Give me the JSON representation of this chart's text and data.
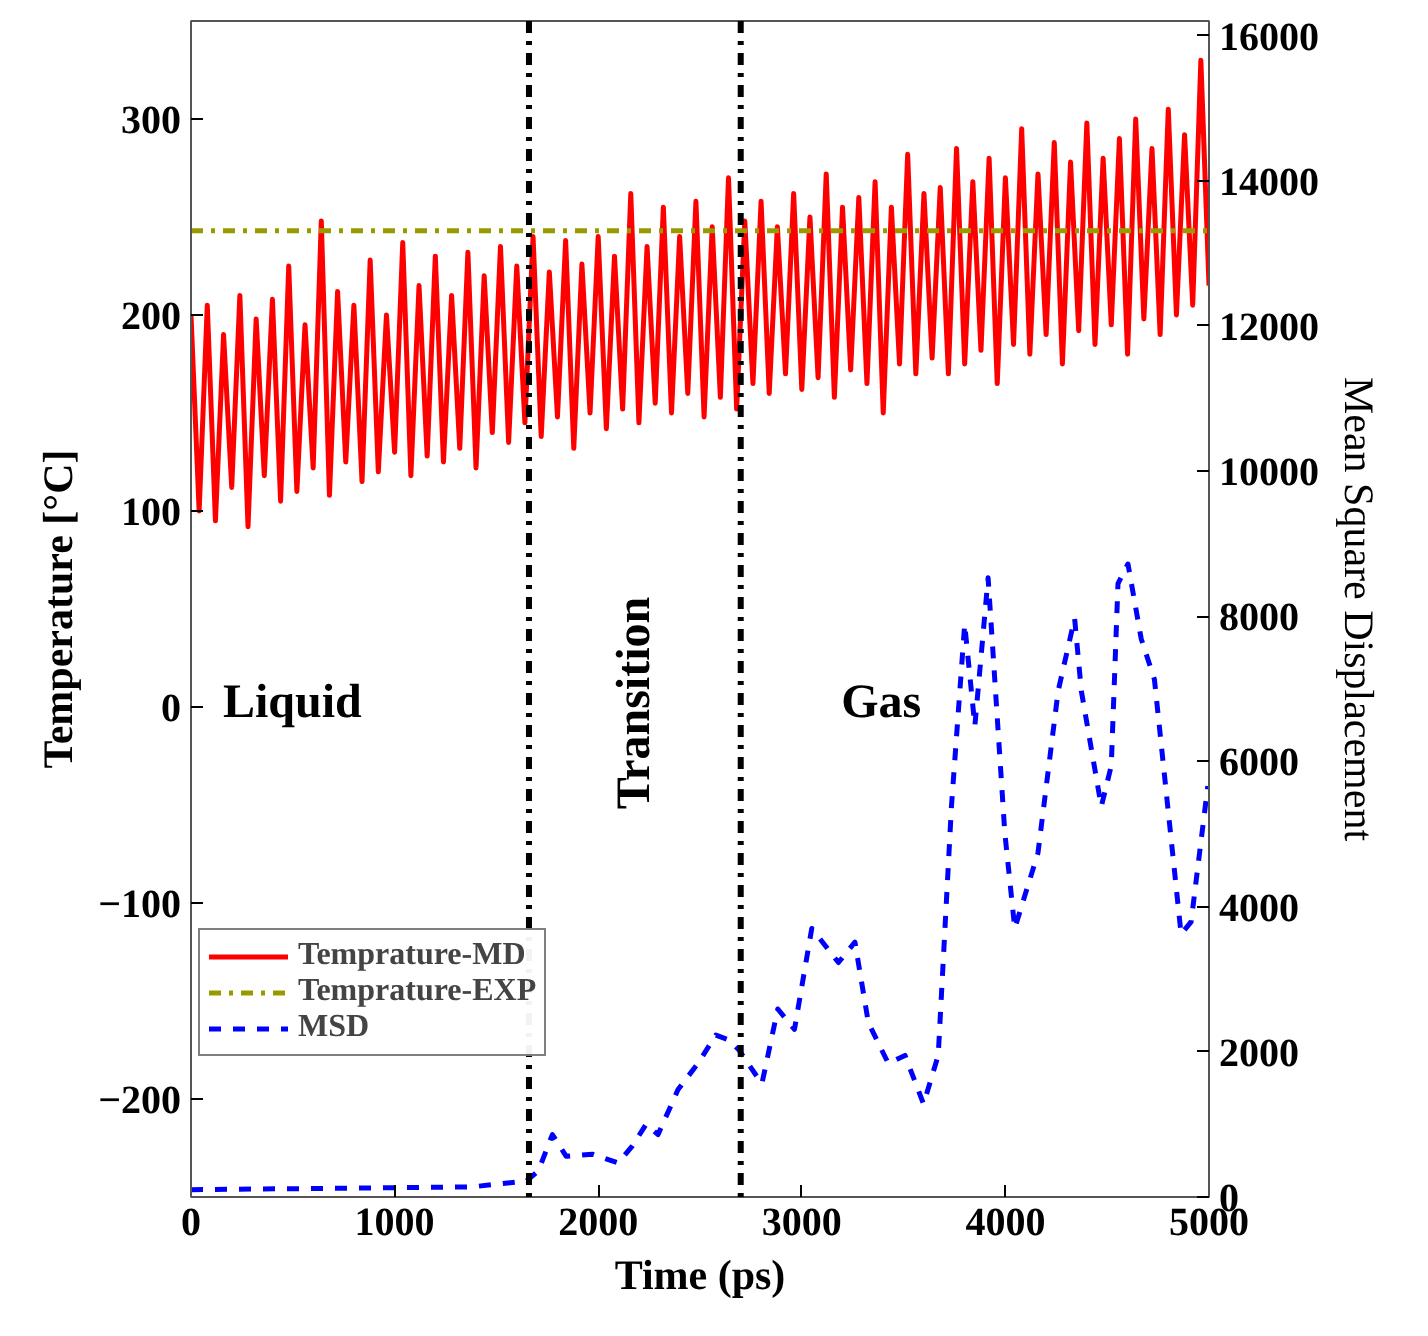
{
  "chart_data": {
    "type": "line",
    "xlabel": "Time (ps)",
    "ylabel": "Temperature [°C]",
    "y2label": "Mean Square Displacement",
    "xlim": [
      0,
      5000
    ],
    "xticks": [
      0,
      1000,
      2000,
      3000,
      4000,
      5000
    ],
    "ylim": [
      -250,
      350
    ],
    "yticks": [
      -200,
      -100,
      0,
      100,
      200,
      300
    ],
    "y2lim": [
      0,
      16200
    ],
    "y2ticks": [
      0,
      2000,
      4000,
      6000,
      8000,
      10000,
      12000,
      14000,
      16000
    ],
    "grid": false,
    "legend": "bottom left",
    "series": [
      {
        "name": "Temprature-MD",
        "color": "#ff0000",
        "line_style": "solid",
        "x": [
          0,
          40,
          80,
          120,
          160,
          200,
          240,
          280,
          320,
          360,
          400,
          440,
          480,
          520,
          560,
          600,
          640,
          680,
          720,
          760,
          800,
          840,
          880,
          920,
          960,
          1000,
          1040,
          1080,
          1120,
          1160,
          1200,
          1240,
          1280,
          1320,
          1360,
          1400,
          1440,
          1480,
          1520,
          1560,
          1600,
          1640,
          1680,
          1720,
          1760,
          1800,
          1840,
          1880,
          1920,
          1960,
          2000,
          2040,
          2080,
          2120,
          2160,
          2200,
          2240,
          2280,
          2320,
          2360,
          2400,
          2440,
          2480,
          2520,
          2560,
          2600,
          2640,
          2680,
          2720,
          2760,
          2800,
          2840,
          2880,
          2920,
          2960,
          3000,
          3040,
          3080,
          3120,
          3160,
          3200,
          3240,
          3280,
          3320,
          3360,
          3400,
          3440,
          3480,
          3520,
          3560,
          3600,
          3640,
          3680,
          3720,
          3760,
          3800,
          3840,
          3880,
          3920,
          3960,
          4000,
          4040,
          4080,
          4120,
          4160,
          4200,
          4240,
          4280,
          4320,
          4360,
          4400,
          4440,
          4480,
          4520,
          4560,
          4600,
          4640,
          4680,
          4720,
          4760,
          4800,
          4840,
          4880,
          4920,
          4960,
          5000
        ],
        "values": [
          200,
          100,
          205,
          95,
          190,
          112,
          210,
          92,
          198,
          118,
          208,
          105,
          225,
          110,
          195,
          122,
          248,
          108,
          212,
          125,
          205,
          115,
          228,
          120,
          200,
          130,
          237,
          118,
          215,
          128,
          230,
          125,
          210,
          132,
          232,
          122,
          220,
          140,
          235,
          135,
          225,
          145,
          240,
          138,
          222,
          148,
          238,
          132,
          226,
          150,
          240,
          142,
          230,
          152,
          262,
          145,
          235,
          155,
          255,
          150,
          240,
          160,
          258,
          148,
          245,
          158,
          270,
          152,
          248,
          165,
          258,
          160,
          245,
          170,
          262,
          162,
          250,
          168,
          272,
          158,
          255,
          172,
          260,
          165,
          268,
          150,
          255,
          175,
          282,
          170,
          262,
          178,
          265,
          170,
          285,
          175,
          268,
          182,
          280,
          165,
          270,
          185,
          295,
          180,
          272,
          190,
          288,
          175,
          278,
          192,
          298,
          185,
          280,
          195,
          290,
          180,
          300,
          198,
          285,
          190,
          305,
          200,
          292,
          205,
          330,
          215
        ]
      },
      {
        "name": "Temprature-EXP",
        "color": "#999900",
        "line_style": "dashdot",
        "x": [
          0,
          5000
        ],
        "values": [
          243,
          243
        ]
      },
      {
        "name": "MSD",
        "color": "#0000ff",
        "line_style": "dashed",
        "axis": "y2",
        "x": [
          0,
          1382,
          1647,
          1706,
          1775,
          1843,
          1971,
          2098,
          2167,
          2235,
          2294,
          2392,
          2490,
          2578,
          2637,
          2690,
          2804,
          2882,
          2964,
          3049,
          3180,
          3261,
          3327,
          3425,
          3507,
          3598,
          3670,
          3735,
          3800,
          3850,
          3915,
          3997,
          4046,
          4160,
          4259,
          4340,
          4373,
          4471,
          4520,
          4553,
          4602,
          4667,
          4732,
          4863,
          4912,
          4994
        ],
        "values": [
          100,
          140,
          220,
          360,
          860,
          560,
          590,
          470,
          700,
          1000,
          860,
          1480,
          1840,
          2230,
          2170,
          2030,
          1560,
          2590,
          2310,
          3700,
          3230,
          3510,
          2400,
          1840,
          1950,
          1280,
          1950,
          5380,
          7890,
          6490,
          8530,
          5020,
          3700,
          4740,
          6970,
          7970,
          6970,
          5380,
          5940,
          8450,
          8720,
          7690,
          7130,
          3620,
          3790,
          5660
        ]
      }
    ],
    "ref_lines": [
      {
        "axis": "x",
        "value": 1660,
        "color": "#000000",
        "line_style": "dashdot"
      },
      {
        "axis": "x",
        "value": 2700,
        "color": "#000000",
        "line_style": "dashdot"
      }
    ],
    "annotations": [
      "Liquid",
      "Transition",
      "Gas"
    ]
  }
}
